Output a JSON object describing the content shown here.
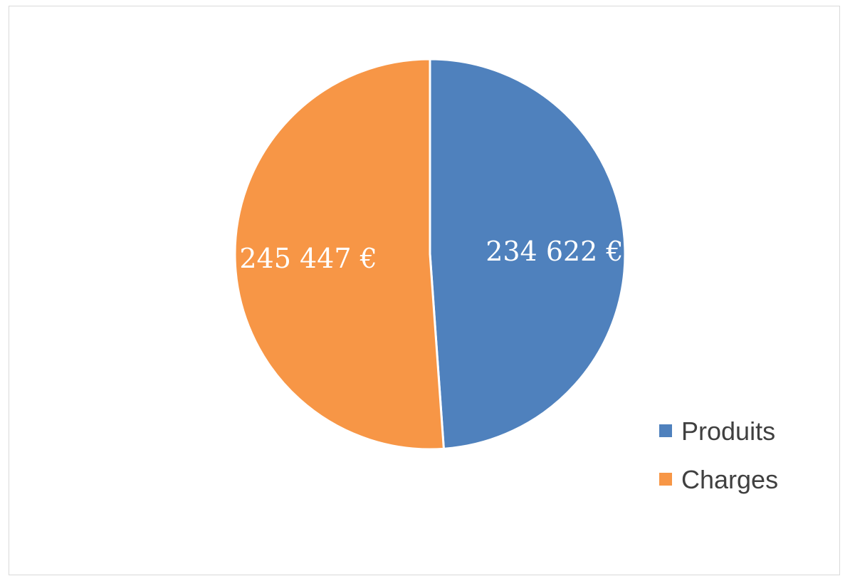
{
  "chart_data": {
    "type": "pie",
    "categories": [
      "Produits",
      "Charges"
    ],
    "values": [
      234622,
      245447
    ],
    "data_labels": [
      "234 622 €",
      "245 447 €"
    ],
    "colors": [
      "#4f81bd",
      "#f79646"
    ],
    "legend": {
      "position": "bottom-right",
      "entries": [
        "Produits",
        "Charges"
      ]
    }
  }
}
